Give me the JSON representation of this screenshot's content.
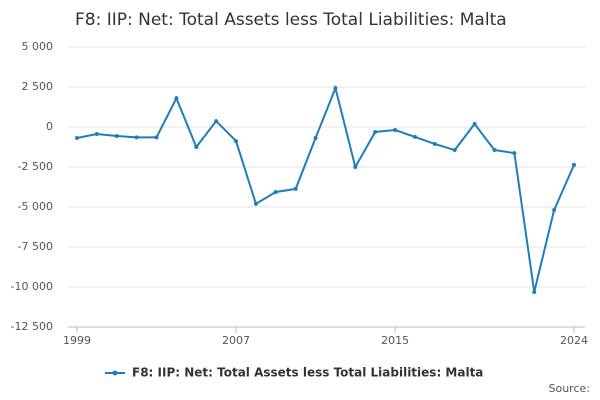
{
  "chart_data": {
    "type": "line",
    "title": "F8: IIP: Net: Total Assets less Total Liabilities: Malta",
    "source": "Source:",
    "x": [
      1999,
      2000,
      2001,
      2002,
      2003,
      2004,
      2005,
      2006,
      2007,
      2008,
      2009,
      2010,
      2011,
      2012,
      2013,
      2014,
      2015,
      2016,
      2017,
      2018,
      2019,
      2020,
      2021,
      2022,
      2023,
      2024
    ],
    "series": [
      {
        "name": "F8: IIP: Net: Total Assets less Total Liabilities: Malta",
        "color": "#1f7eb8",
        "values": [
          -690,
          -440,
          -560,
          -650,
          -650,
          1800,
          -1250,
          370,
          -880,
          -4800,
          -4060,
          -3870,
          -690,
          2430,
          -2500,
          -310,
          -190,
          -620,
          -1060,
          -1440,
          190,
          -1440,
          -1630,
          -10310,
          -5190,
          -2370
        ]
      }
    ],
    "xlim": [
      1999,
      2024
    ],
    "xticks": [
      1999,
      2007,
      2015,
      2024
    ],
    "ylim": [
      -12500,
      5000
    ],
    "yticks": [
      {
        "value": -12500,
        "label": "-12 500"
      },
      {
        "value": -10000,
        "label": "-10 000"
      },
      {
        "value": -7500,
        "label": "-7 500"
      },
      {
        "value": -5000,
        "label": "-5 000"
      },
      {
        "value": -2500,
        "label": "-2 500"
      },
      0,
      {
        "value": 2500,
        "label": "2 500"
      },
      {
        "value": 5000,
        "label": "5 000"
      }
    ],
    "grid": true
  }
}
